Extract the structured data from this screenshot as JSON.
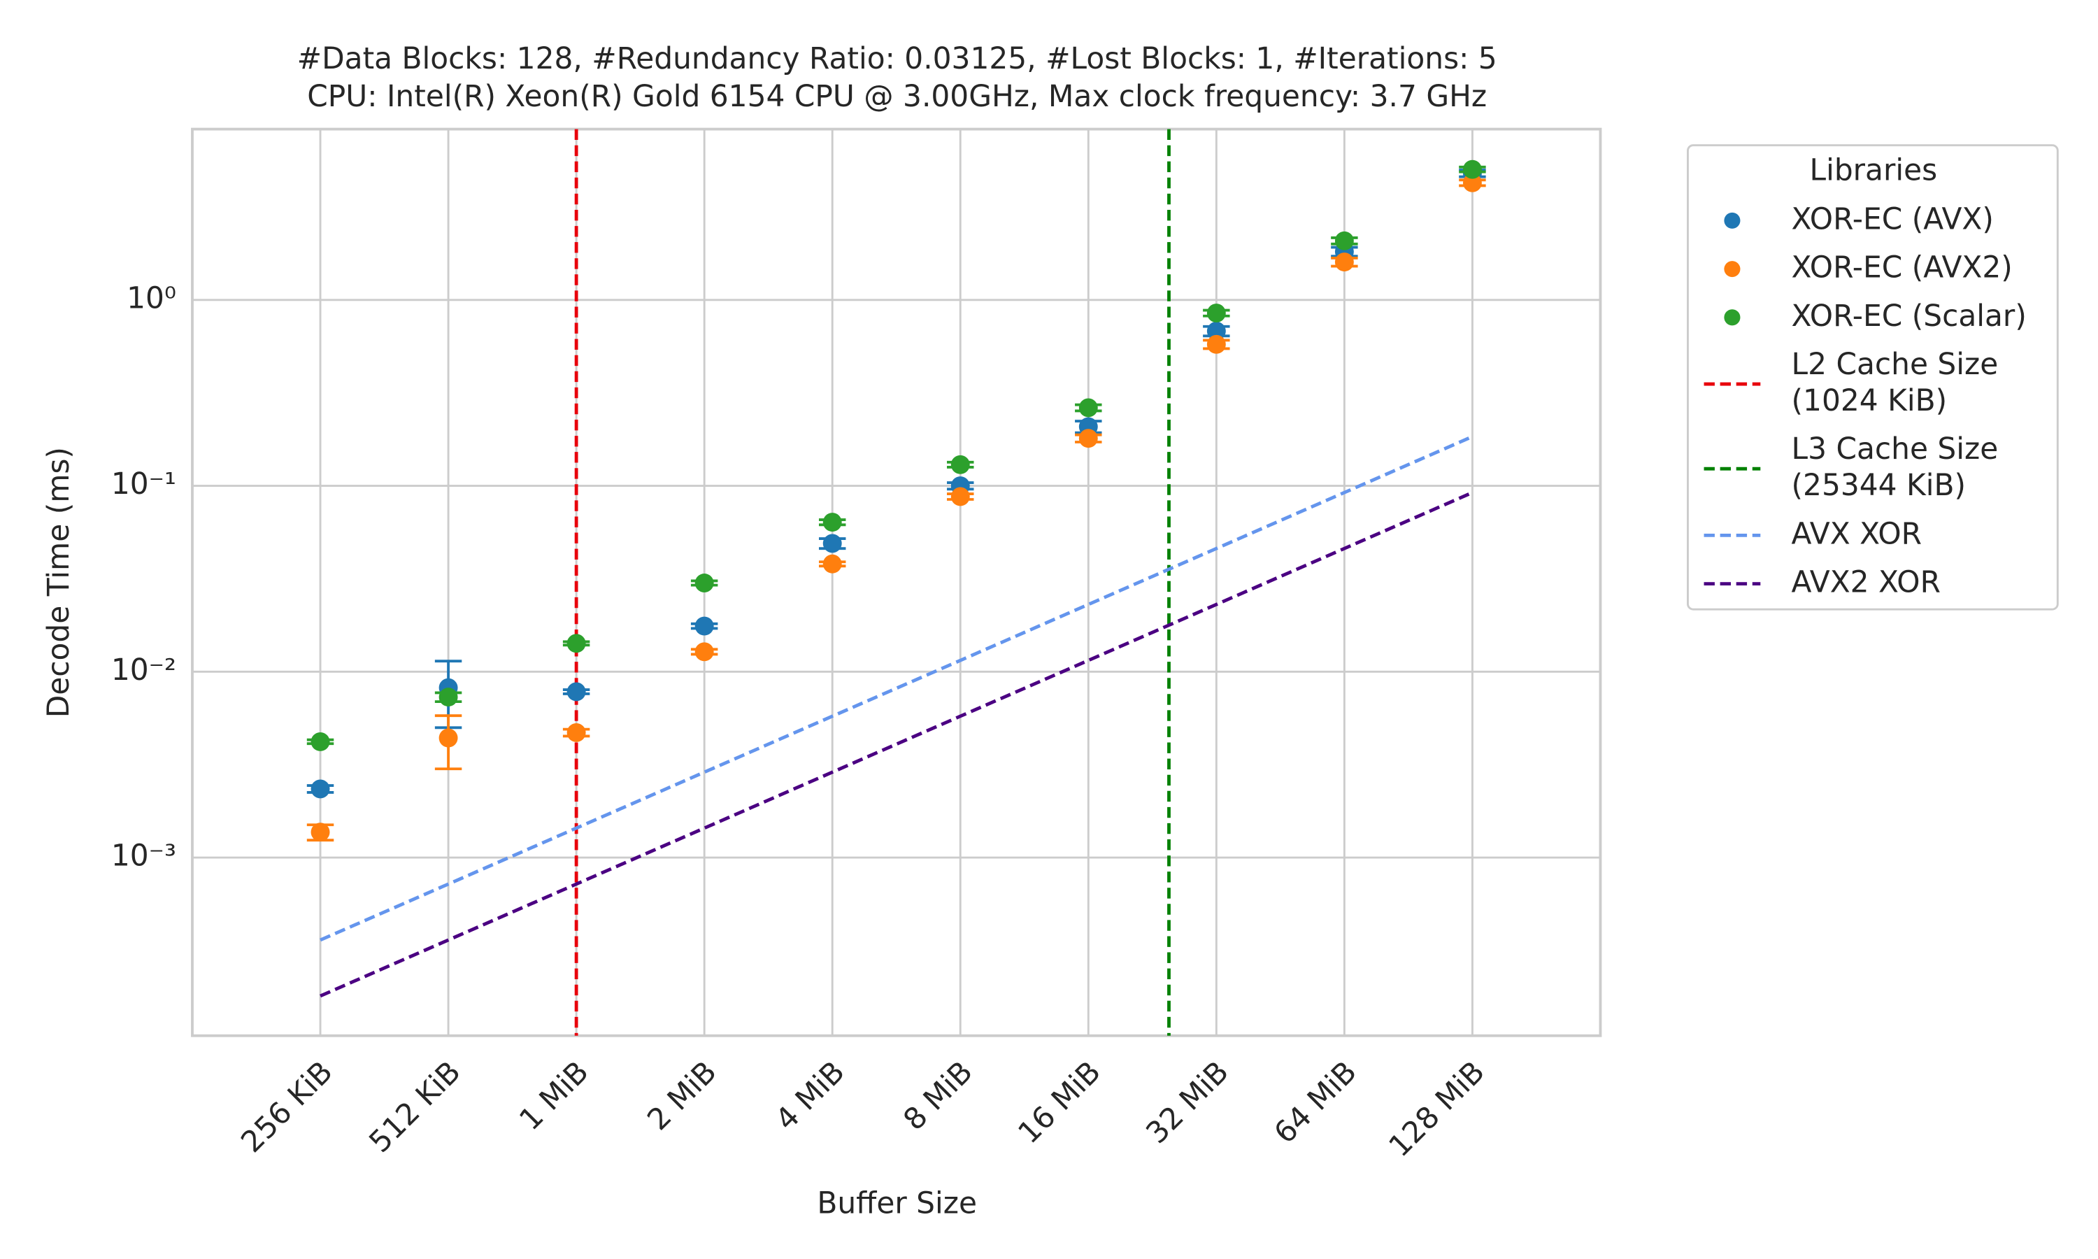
{
  "chart_data": {
    "type": "scatter",
    "title": "#Data Blocks: 128, #Redundancy Ratio: 0.03125, #Lost Blocks: 1, #Iterations: 5",
    "subtitle": "CPU: Intel(R) Xeon(R) Gold 6154 CPU @ 3.00GHz, Max clock frequency: 3.7 GHz",
    "x_label": "Buffer Size",
    "y_label": "Decode Time (ms)",
    "x_log_base": 2,
    "y_log": true,
    "grid": true,
    "legend_title": "Libraries",
    "legend_position": "outside upper right",
    "x": [
      256,
      512,
      1024,
      2048,
      4096,
      8192,
      16384,
      32768,
      65536,
      131072
    ],
    "xlim": [
      128,
      262144
    ],
    "xticks": [
      {
        "value": 256,
        "label": "256 KiB"
      },
      {
        "value": 512,
        "label": "512 KiB"
      },
      {
        "value": 1024,
        "label": "1 MiB"
      },
      {
        "value": 2048,
        "label": "2 MiB"
      },
      {
        "value": 4096,
        "label": "4 MiB"
      },
      {
        "value": 8192,
        "label": "8 MiB"
      },
      {
        "value": 16384,
        "label": "16 MiB"
      },
      {
        "value": 32768,
        "label": "32 MiB"
      },
      {
        "value": 65536,
        "label": "64 MiB"
      },
      {
        "value": 131072,
        "label": "128 MiB"
      }
    ],
    "ylim": [
      0.00011,
      8.3
    ],
    "yticks": [
      {
        "value": 0.001,
        "label": "10⁻³"
      },
      {
        "value": 0.01,
        "label": "10⁻²"
      },
      {
        "value": 0.1,
        "label": "10⁻¹"
      },
      {
        "value": 1,
        "label": "10⁰"
      }
    ],
    "series": [
      {
        "name": "XOR-EC (AVX)",
        "color": "#1f77b4",
        "style": "points",
        "values": [
          0.00234,
          0.0082,
          0.0078,
          0.0176,
          0.049,
          0.1,
          0.208,
          0.68,
          1.82,
          4.8
        ],
        "errors": [
          0.0001,
          0.0032,
          0.0002,
          0.0005,
          0.003,
          0.004,
          0.015,
          0.04,
          0.1,
          0.2
        ]
      },
      {
        "name": "XOR-EC (AVX2)",
        "color": "#ff7f0e",
        "style": "points",
        "values": [
          0.00137,
          0.0044,
          0.0047,
          0.0128,
          0.038,
          0.0875,
          0.18,
          0.577,
          1.6,
          4.27
        ],
        "errors": [
          0.00013,
          0.0014,
          0.0002,
          0.0004,
          0.001,
          0.003,
          0.008,
          0.03,
          0.08,
          0.15
        ]
      },
      {
        "name": "XOR-EC (Scalar)",
        "color": "#2ca02c",
        "style": "points",
        "values": [
          0.0042,
          0.0073,
          0.0142,
          0.03,
          0.0637,
          0.13,
          0.263,
          0.85,
          2.08,
          5.04
        ],
        "errors": [
          0.0001,
          0.0004,
          0.0003,
          0.0008,
          0.002,
          0.004,
          0.01,
          0.03,
          0.08,
          0.15
        ]
      },
      {
        "name": "AVX XOR",
        "color": "#6495ed",
        "style": "dashed",
        "values": [
          0.00036,
          0.00072,
          0.00144,
          0.00288,
          0.00576,
          0.0115,
          0.023,
          0.046,
          0.092,
          0.184
        ]
      },
      {
        "name": "AVX2 XOR",
        "color": "#4b0082",
        "style": "dashed",
        "values": [
          0.00018,
          0.00036,
          0.00072,
          0.00144,
          0.00288,
          0.00576,
          0.0115,
          0.023,
          0.046,
          0.092
        ]
      }
    ],
    "vlines": [
      {
        "name": "L2 Cache Size\n(1024 KiB)",
        "x": 1024,
        "color": "#e8000b"
      },
      {
        "name": "L3 Cache Size\n(25344 KiB)",
        "x": 25344,
        "color": "#008000"
      }
    ]
  }
}
